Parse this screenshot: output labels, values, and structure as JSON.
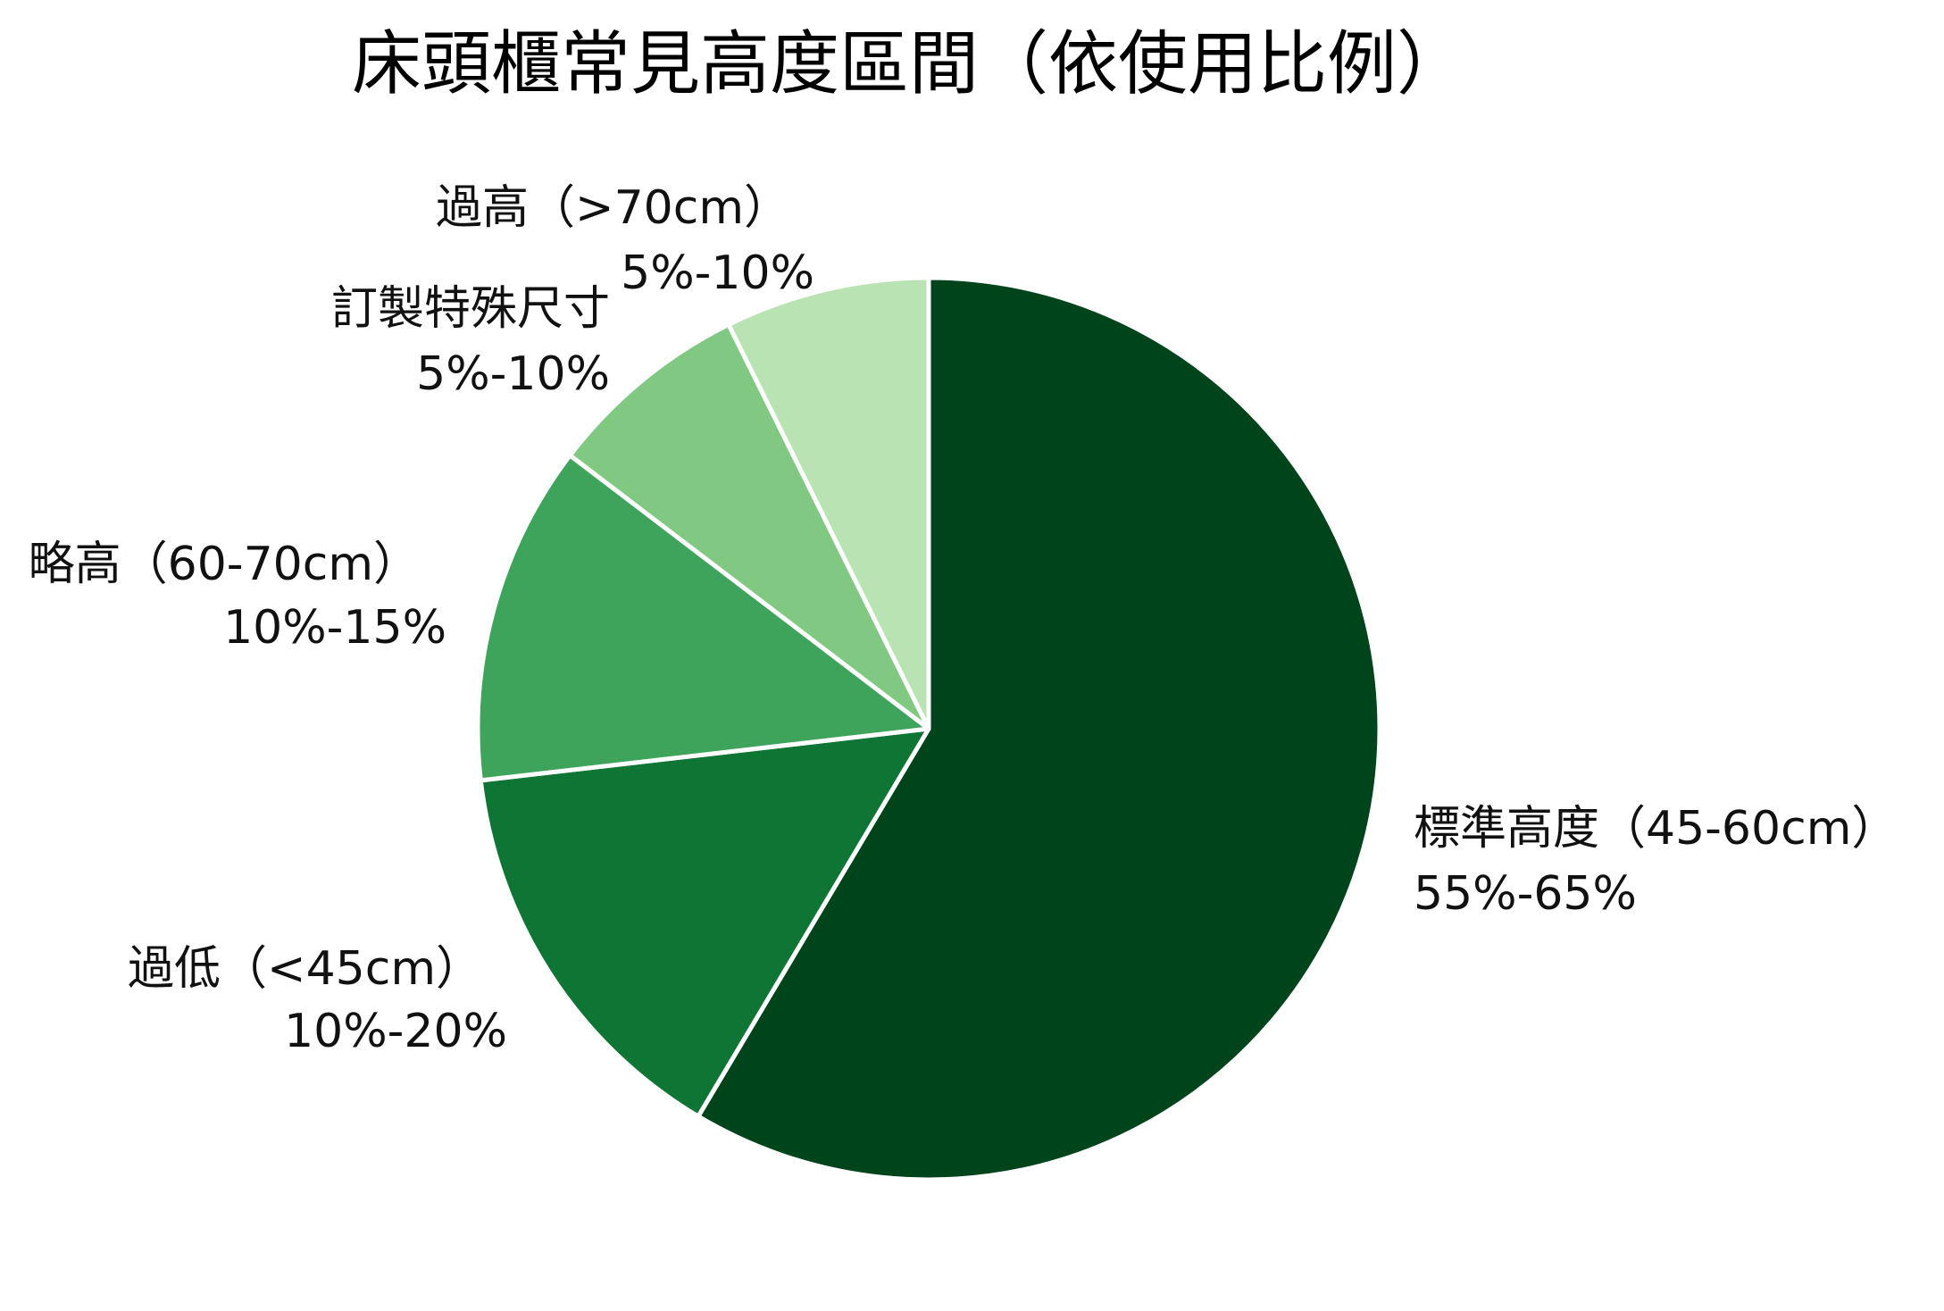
{
  "chart_data": {
    "type": "pie",
    "title": "床頭櫃常見高度區間（依使用比例）",
    "start": "top",
    "direction": "clockwise",
    "slices": [
      {
        "label": "標準高度（45-60cm）",
        "range": "55%-65%",
        "value": 60,
        "color": "#00441b"
      },
      {
        "label": "過低（<45cm）",
        "range": "10%-20%",
        "value": 15,
        "color": "#0e7534"
      },
      {
        "label": "略高（60-70cm）",
        "range": "10%-15%",
        "value": 12.5,
        "color": "#3fa45b"
      },
      {
        "label": "訂製特殊尺寸",
        "range": "5%-10%",
        "value": 7.5,
        "color": "#81c883"
      },
      {
        "label": "過高（>70cm）",
        "range": "5%-10%",
        "value": 7.5,
        "color": "#b9e3b2"
      }
    ]
  }
}
